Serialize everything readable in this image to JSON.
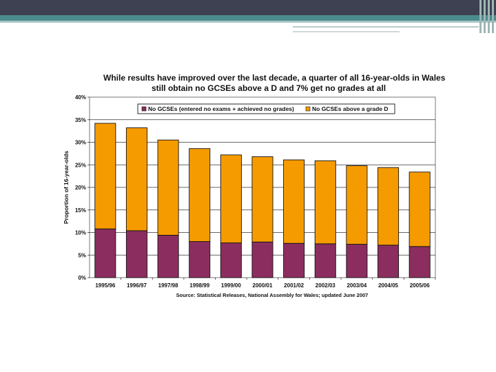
{
  "colors": {
    "no_gcses": "#8b2e5f",
    "above_d": "#f59b00",
    "header_dark": "#3d4152",
    "header_teal": "#4a8c8c"
  },
  "chart_data": {
    "type": "bar",
    "stacked": true,
    "title_lines": [
      "While results have improved over the last decade, a quarter of all 16-year-olds in Wales",
      "still obtain no GCSEs above a D and 7% get no grades at all"
    ],
    "xlabel": "",
    "ylabel": "Proportion of 16-year-olds",
    "ylim": [
      0,
      40
    ],
    "yticks": [
      "0%",
      "5%",
      "10%",
      "15%",
      "20%",
      "25%",
      "30%",
      "35%",
      "40%"
    ],
    "grid": true,
    "legend_position": "top-right",
    "categories": [
      "1995/96",
      "1996/97",
      "1997/98",
      "1998/99",
      "1999/00",
      "2000/01",
      "2001/02",
      "2002/03",
      "2003/04",
      "2004/05",
      "2005/06"
    ],
    "series": [
      {
        "name": "No GCSEs (entered no exams + achieved no grades)",
        "values": [
          10.8,
          10.4,
          9.4,
          8.0,
          7.7,
          7.9,
          7.6,
          7.5,
          7.4,
          7.2,
          6.9
        ]
      },
      {
        "name": "No GCSEs above a grade D",
        "values": [
          23.4,
          22.8,
          21.1,
          20.6,
          19.5,
          18.9,
          18.5,
          18.4,
          17.4,
          17.2,
          16.5
        ]
      }
    ],
    "source": "Source: Statistical Releases, National Assembly for Wales; updated June 2007"
  }
}
